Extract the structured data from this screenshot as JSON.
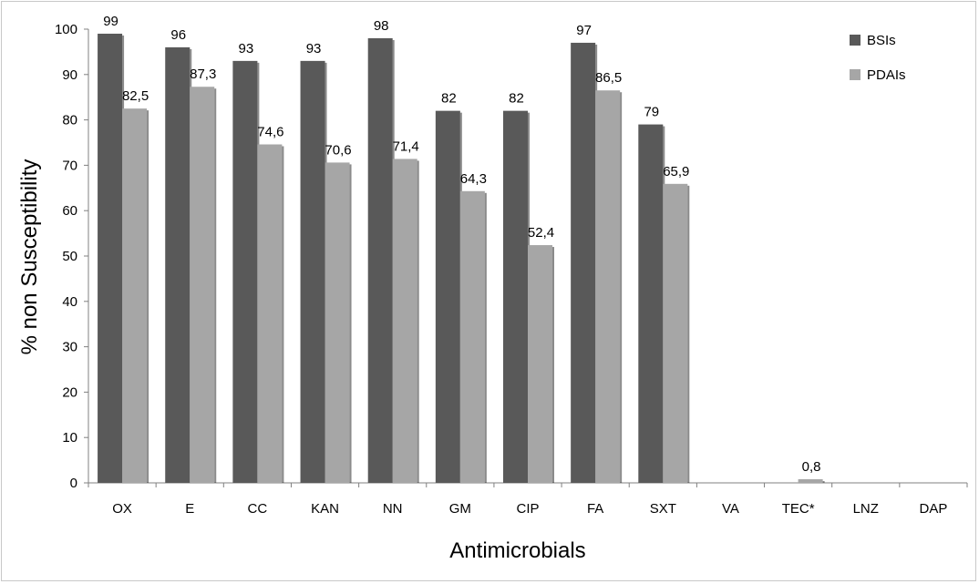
{
  "chart_data": {
    "type": "bar",
    "title": "",
    "xlabel": "Antimicrobials",
    "ylabel": "% non Susceptibility",
    "ylim": [
      0,
      100
    ],
    "yticks": [
      0,
      10,
      20,
      30,
      40,
      50,
      60,
      70,
      80,
      90,
      100
    ],
    "grid": false,
    "legend_position": "top-right",
    "categories": [
      "OX",
      "E",
      "CC",
      "KAN",
      "NN",
      "GM",
      "CIP",
      "FA",
      "SXT",
      "VA",
      "TEC*",
      "LNZ",
      "DAP"
    ],
    "series": [
      {
        "name": "BSIs",
        "color": "#595959",
        "values": [
          99,
          96,
          93,
          93,
          98,
          82,
          82,
          97,
          79,
          0,
          0,
          0,
          0
        ],
        "labels": [
          "99",
          "96",
          "93",
          "93",
          "98",
          "82",
          "82",
          "97",
          "79",
          "",
          "",
          "",
          ""
        ]
      },
      {
        "name": "PDAIs",
        "color": "#a6a6a6",
        "values": [
          82.5,
          87.3,
          74.6,
          70.6,
          71.4,
          64.3,
          52.4,
          86.5,
          65.9,
          0,
          0.8,
          0,
          0
        ],
        "labels": [
          "82,5",
          "87,3",
          "74,6",
          "70,6",
          "71,4",
          "64,3",
          "52,4",
          "86,5",
          "65,9",
          "",
          "0,8",
          "",
          ""
        ]
      }
    ]
  }
}
